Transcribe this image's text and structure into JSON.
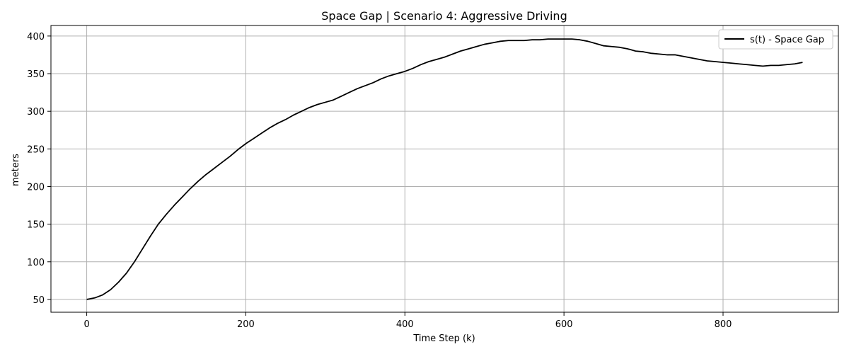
{
  "chart_data": {
    "type": "line",
    "title": "Space Gap | Scenario 4: Aggressive Driving",
    "xlabel": "Time Step (k)",
    "ylabel": "meters",
    "xlim": [
      -45,
      945
    ],
    "ylim": [
      33,
      414
    ],
    "xticks": [
      0,
      200,
      400,
      600,
      800
    ],
    "yticks": [
      50,
      100,
      150,
      200,
      250,
      300,
      350,
      400
    ],
    "grid": true,
    "legend_position": "top-right",
    "line_color": "#000000",
    "series": [
      {
        "name": "s(t) - Space Gap",
        "x": [
          0,
          10,
          20,
          30,
          40,
          50,
          60,
          70,
          80,
          90,
          100,
          110,
          120,
          130,
          140,
          150,
          160,
          170,
          180,
          190,
          200,
          210,
          220,
          230,
          240,
          250,
          260,
          270,
          280,
          290,
          300,
          310,
          320,
          330,
          340,
          350,
          360,
          370,
          380,
          390,
          400,
          410,
          420,
          430,
          440,
          450,
          460,
          470,
          480,
          490,
          500,
          510,
          520,
          530,
          540,
          550,
          560,
          570,
          580,
          590,
          600,
          610,
          620,
          630,
          640,
          650,
          660,
          670,
          680,
          690,
          700,
          710,
          720,
          730,
          740,
          750,
          760,
          770,
          780,
          790,
          800,
          810,
          820,
          830,
          840,
          850,
          860,
          870,
          880,
          890,
          900
        ],
        "y": [
          50,
          52,
          56,
          63,
          73,
          85,
          100,
          117,
          134,
          150,
          163,
          175,
          186,
          197,
          207,
          216,
          224,
          232,
          240,
          249,
          257,
          264,
          271,
          278,
          284,
          289,
          295,
          300,
          305,
          309,
          312,
          315,
          320,
          325,
          330,
          334,
          338,
          343,
          347,
          350,
          353,
          357,
          362,
          366,
          369,
          372,
          376,
          380,
          383,
          386,
          389,
          391,
          393,
          394,
          394,
          394,
          395,
          395,
          396,
          396,
          396,
          396,
          395,
          393,
          390,
          387,
          386,
          385,
          383,
          380,
          379,
          377,
          376,
          375,
          375,
          373,
          371,
          369,
          367,
          366,
          365,
          364,
          363,
          362,
          361,
          360,
          361,
          361,
          362,
          363,
          365
        ]
      }
    ]
  }
}
